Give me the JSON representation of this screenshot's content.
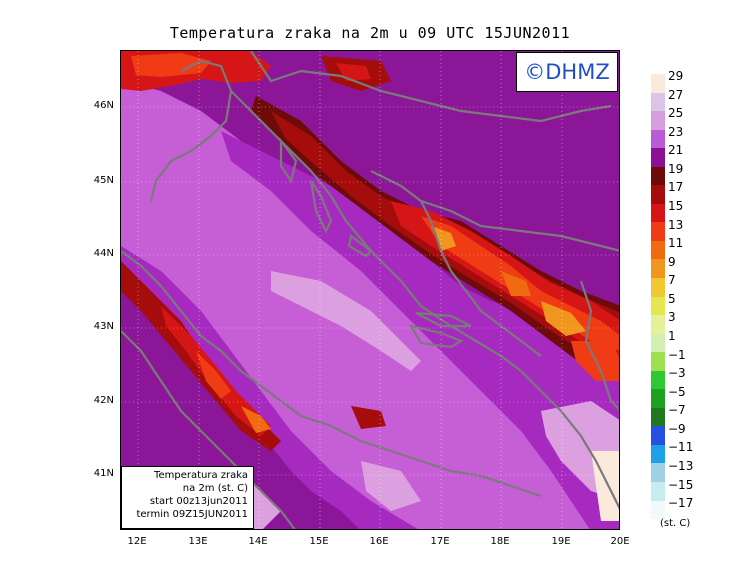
{
  "title": "Temperatura zraka na 2m u 09 UTC 15JUN2011",
  "logo": "©DHMZ",
  "info": {
    "line1": "Temperatura zraka",
    "line2": "na 2m (st. C)",
    "line3": "start 00z13jun2011",
    "line4": "termin 09Z15JUN2011"
  },
  "lat_ticks": [
    "46N",
    "45N",
    "44N",
    "43N",
    "42N",
    "41N"
  ],
  "lon_ticks": [
    "12E",
    "13E",
    "14E",
    "15E",
    "16E",
    "17E",
    "18E",
    "19E",
    "20E"
  ],
  "legend": {
    "labels": [
      "29",
      "27",
      "25",
      "23",
      "21",
      "19",
      "17",
      "15",
      "13",
      "11",
      "9",
      "7",
      "5",
      "3",
      "1",
      "−1",
      "−3",
      "−5",
      "−7",
      "−9",
      "−11",
      "−13",
      "−15",
      "−17"
    ],
    "colors": [
      "#fbe9dc",
      "#dcc4e6",
      "#d89ce0",
      "#ba5ad6",
      "#8b1096",
      "#6e0a0a",
      "#a50c0c",
      "#d61616",
      "#ef3c14",
      "#f06a10",
      "#f0961e",
      "#f0c832",
      "#e6e650",
      "#e6f098",
      "#d2f0b4",
      "#a0e050",
      "#30c832",
      "#20a020",
      "#207820",
      "#2850e0",
      "#1ea0e6",
      "#a0d2e6",
      "#c8ebf0",
      "#f0fafa"
    ],
    "unit": "(st. C)"
  },
  "map_colors": {
    "sea": "#c65ed6",
    "warm_land": "#a02cbc",
    "hot_land": "#800e84",
    "highland_cool": "#dca0e0",
    "coastline": "#7a7a7a"
  }
}
